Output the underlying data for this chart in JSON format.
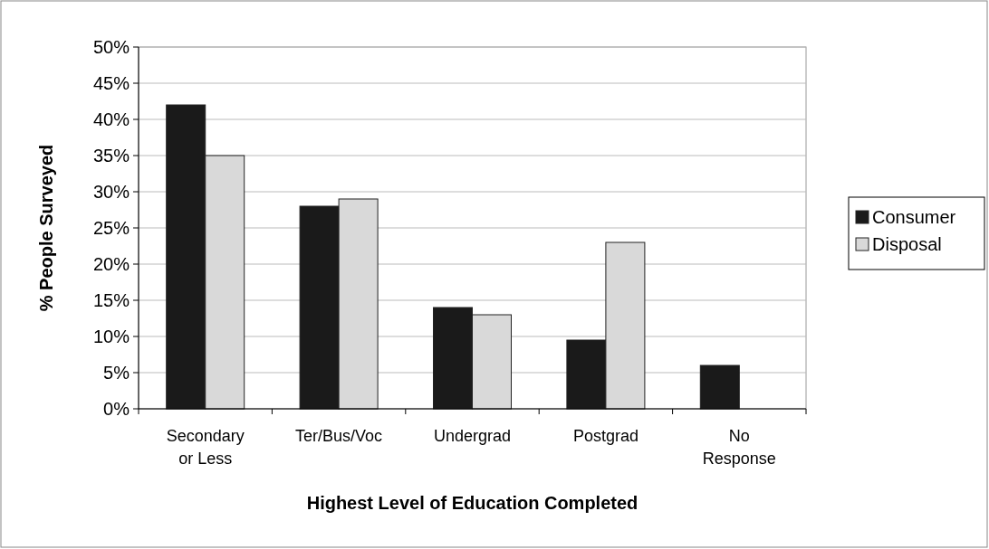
{
  "chart_data": {
    "type": "bar",
    "xlabel": "Highest Level of Education Completed",
    "ylabel": "% People Surveyed",
    "categories": [
      "Secondary or Less",
      "Ter/Bus/Voc",
      "Undergrad",
      "Postgrad",
      "No Response"
    ],
    "series": [
      {
        "name": "Consumer",
        "color": "#1a1a1a",
        "values": [
          42,
          28,
          14,
          9.5,
          6
        ]
      },
      {
        "name": "Disposal",
        "color": "#d9d9d9",
        "values": [
          35,
          29,
          13,
          23,
          null
        ]
      }
    ],
    "ylim": [
      0,
      50
    ],
    "yticks": [
      {
        "value": 0,
        "label": "0%"
      },
      {
        "value": 5,
        "label": "5%"
      },
      {
        "value": 10,
        "label": "10%"
      },
      {
        "value": 15,
        "label": "15%"
      },
      {
        "value": 20,
        "label": "20%"
      },
      {
        "value": 25,
        "label": "25%"
      },
      {
        "value": 30,
        "label": "30%"
      },
      {
        "value": 35,
        "label": "35%"
      },
      {
        "value": 40,
        "label": "40%"
      },
      {
        "value": 45,
        "label": "45%"
      },
      {
        "value": 50,
        "label": "50%"
      }
    ],
    "grid": "y",
    "legend": "right"
  }
}
